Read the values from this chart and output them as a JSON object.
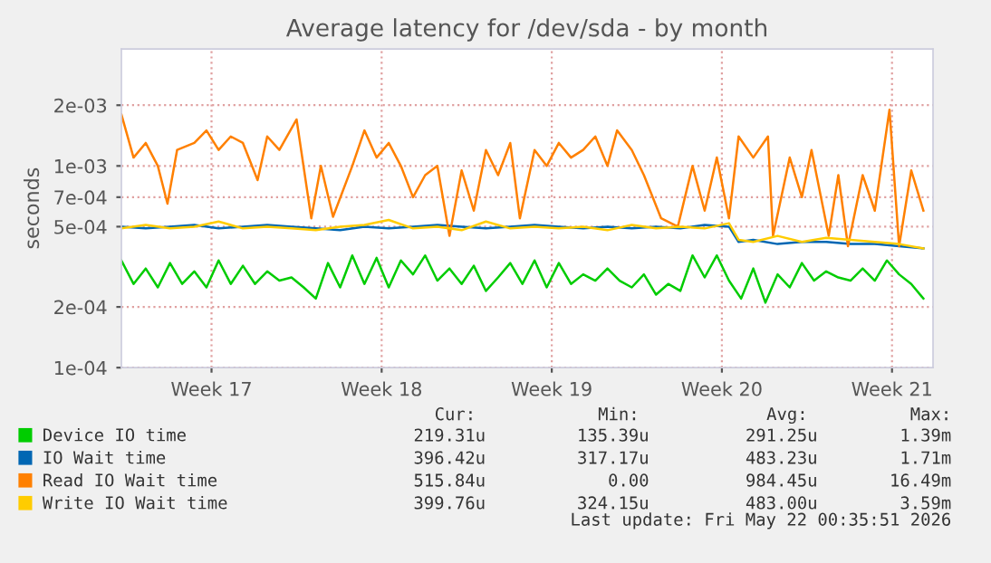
{
  "chart_data": {
    "type": "line",
    "title": "Average latency for /dev/sda - by month",
    "ylabel": "seconds",
    "log": "y",
    "grid": true,
    "legend": "bottom",
    "marker": "none",
    "line_style": "solid",
    "xlim": [
      "2026-04-19T19:00",
      "2026-05-23T04:30"
    ],
    "xticks": [
      {
        "value": "2026-04-23T12:00",
        "label": "Week 17"
      },
      {
        "value": "2026-04-30T12:00",
        "label": "Week 18"
      },
      {
        "value": "2026-05-07T12:00",
        "label": "Week 19"
      },
      {
        "value": "2026-05-14T12:00",
        "label": "Week 20"
      },
      {
        "value": "2026-05-21T12:00",
        "label": "Week 21"
      }
    ],
    "ylim": [
      0.0001,
      0.0038
    ],
    "yticks": [
      {
        "value": 0.0001,
        "label": "1e-04"
      },
      {
        "value": 0.0002,
        "label": "2e-04"
      },
      {
        "value": 0.0005,
        "label": "5e-04"
      },
      {
        "value": 0.0007,
        "label": "7e-04"
      },
      {
        "value": 0.001,
        "label": "1e-03"
      },
      {
        "value": 0.002,
        "label": "2e-03"
      }
    ],
    "series": [
      {
        "name": "Device IO time",
        "color": "#00cc00",
        "x": [
          "2026-04-19T19:00",
          "2026-04-20T07:00",
          "2026-04-20T19:00",
          "2026-04-21T07:00",
          "2026-04-21T19:00",
          "2026-04-22T07:00",
          "2026-04-22T19:00",
          "2026-04-23T07:00",
          "2026-04-23T19:00",
          "2026-04-24T07:00",
          "2026-04-24T19:00",
          "2026-04-25T07:00",
          "2026-04-25T19:00",
          "2026-04-26T07:00",
          "2026-04-26T19:00",
          "2026-04-27T07:00",
          "2026-04-27T19:00",
          "2026-04-28T07:00",
          "2026-04-28T19:00",
          "2026-04-29T07:00",
          "2026-04-29T19:00",
          "2026-04-30T07:00",
          "2026-04-30T19:00",
          "2026-05-01T07:00",
          "2026-05-01T19:00",
          "2026-05-02T07:00",
          "2026-05-02T19:00",
          "2026-05-03T07:00",
          "2026-05-03T19:00",
          "2026-05-04T07:00",
          "2026-05-04T19:00",
          "2026-05-05T07:00",
          "2026-05-05T19:00",
          "2026-05-06T07:00",
          "2026-05-06T19:00",
          "2026-05-07T07:00",
          "2026-05-07T19:00",
          "2026-05-08T07:00",
          "2026-05-08T19:00",
          "2026-05-09T07:00",
          "2026-05-09T19:00",
          "2026-05-10T07:00",
          "2026-05-10T19:00",
          "2026-05-11T07:00",
          "2026-05-11T19:00",
          "2026-05-12T07:00",
          "2026-05-12T19:00",
          "2026-05-13T07:00",
          "2026-05-13T19:00",
          "2026-05-14T07:00",
          "2026-05-14T19:00",
          "2026-05-15T07:00",
          "2026-05-15T19:00",
          "2026-05-16T07:00",
          "2026-05-16T19:00",
          "2026-05-17T07:00",
          "2026-05-17T19:00",
          "2026-05-18T07:00",
          "2026-05-18T19:00",
          "2026-05-19T07:00",
          "2026-05-19T19:00",
          "2026-05-20T07:00",
          "2026-05-20T19:00",
          "2026-05-21T07:00",
          "2026-05-21T19:00",
          "2026-05-22T07:00",
          "2026-05-22T19:00"
        ],
        "values": [
          0.00034,
          0.00026,
          0.00031,
          0.00025,
          0.00033,
          0.00026,
          0.0003,
          0.00025,
          0.00034,
          0.00026,
          0.00032,
          0.00026,
          0.0003,
          0.00027,
          0.00028,
          0.00025,
          0.00022,
          0.00033,
          0.00025,
          0.00036,
          0.00026,
          0.00035,
          0.00025,
          0.00034,
          0.00029,
          0.00036,
          0.00027,
          0.00031,
          0.00026,
          0.00032,
          0.00024,
          0.00028,
          0.00033,
          0.00026,
          0.00034,
          0.00025,
          0.00033,
          0.00026,
          0.00029,
          0.00027,
          0.00031,
          0.00027,
          0.00025,
          0.00029,
          0.00023,
          0.00026,
          0.00024,
          0.00036,
          0.00028,
          0.00036,
          0.00027,
          0.00022,
          0.00031,
          0.00021,
          0.00029,
          0.00025,
          0.00033,
          0.00027,
          0.0003,
          0.00028,
          0.00027,
          0.00031,
          0.00027,
          0.00034,
          0.00029,
          0.00026,
          0.00022
        ]
      },
      {
        "name": "IO Wait time",
        "color": "#0066b3",
        "x": [
          "2026-04-19T19:00",
          "2026-04-20T19:00",
          "2026-04-21T19:00",
          "2026-04-22T19:00",
          "2026-04-23T19:00",
          "2026-04-24T19:00",
          "2026-04-25T19:00",
          "2026-04-26T19:00",
          "2026-04-27T19:00",
          "2026-04-28T19:00",
          "2026-04-29T19:00",
          "2026-04-30T19:00",
          "2026-05-01T19:00",
          "2026-05-02T19:00",
          "2026-05-03T19:00",
          "2026-05-04T19:00",
          "2026-05-05T19:00",
          "2026-05-06T19:00",
          "2026-05-07T19:00",
          "2026-05-08T19:00",
          "2026-05-09T19:00",
          "2026-05-10T19:00",
          "2026-05-11T19:00",
          "2026-05-12T19:00",
          "2026-05-13T19:00",
          "2026-05-14T19:00",
          "2026-05-15T04:30",
          "2026-05-15T19:00",
          "2026-05-16T19:00",
          "2026-05-17T19:00",
          "2026-05-18T19:00",
          "2026-05-19T19:00",
          "2026-05-20T19:00",
          "2026-05-21T19:00",
          "2026-05-22T19:00"
        ],
        "values": [
          0.0005,
          0.00049,
          0.0005,
          0.00051,
          0.00049,
          0.0005,
          0.00051,
          0.0005,
          0.00049,
          0.00048,
          0.0005,
          0.00049,
          0.0005,
          0.00051,
          0.0005,
          0.00049,
          0.0005,
          0.00051,
          0.0005,
          0.00049,
          0.0005,
          0.00049,
          0.0005,
          0.00049,
          0.00051,
          0.0005,
          0.00042,
          0.00043,
          0.00041,
          0.00042,
          0.00042,
          0.00041,
          0.00041,
          0.0004,
          0.00039
        ]
      },
      {
        "name": "Read IO Wait time",
        "color": "#ff8000",
        "x": [
          "2026-04-19T19:00",
          "2026-04-20T07:00",
          "2026-04-20T19:00",
          "2026-04-21T07:00",
          "2026-04-21T16:30",
          "2026-04-22T02:00",
          "2026-04-22T19:00",
          "2026-04-23T07:00",
          "2026-04-23T19:00",
          "2026-04-24T07:00",
          "2026-04-24T19:00",
          "2026-04-25T09:30",
          "2026-04-25T19:00",
          "2026-04-26T07:00",
          "2026-04-27T00:00",
          "2026-04-27T14:30",
          "2026-04-28T00:00",
          "2026-04-28T12:00",
          "2026-04-29T07:00",
          "2026-04-29T19:00",
          "2026-04-30T07:00",
          "2026-04-30T19:00",
          "2026-05-01T07:00",
          "2026-05-01T19:00",
          "2026-05-02T07:00",
          "2026-05-02T19:00",
          "2026-05-03T07:00",
          "2026-05-03T19:00",
          "2026-05-04T07:00",
          "2026-05-04T19:00",
          "2026-05-05T07:00",
          "2026-05-05T19:00",
          "2026-05-06T04:30",
          "2026-05-06T19:00",
          "2026-05-07T07:00",
          "2026-05-07T19:00",
          "2026-05-08T07:00",
          "2026-05-08T19:00",
          "2026-05-09T07:00",
          "2026-05-09T19:00",
          "2026-05-10T04:30",
          "2026-05-10T19:00",
          "2026-05-11T07:00",
          "2026-05-12T00:00",
          "2026-05-12T16:30",
          "2026-05-13T07:00",
          "2026-05-13T19:00",
          "2026-05-14T07:00",
          "2026-05-14T19:00",
          "2026-05-15T04:30",
          "2026-05-15T19:00",
          "2026-05-16T09:30",
          "2026-05-16T14:30",
          "2026-05-17T07:00",
          "2026-05-17T19:00",
          "2026-05-18T04:30",
          "2026-05-18T21:30",
          "2026-05-19T07:00",
          "2026-05-19T16:30",
          "2026-05-20T07:00",
          "2026-05-20T19:00",
          "2026-05-21T09:30",
          "2026-05-21T19:00",
          "2026-05-22T07:00",
          "2026-05-22T19:00"
        ],
        "values": [
          0.0018,
          0.0011,
          0.0013,
          0.001,
          0.00065,
          0.0012,
          0.0013,
          0.0015,
          0.0012,
          0.0014,
          0.0013,
          0.00085,
          0.0014,
          0.0012,
          0.0017,
          0.00055,
          0.001,
          0.00056,
          0.001,
          0.0015,
          0.0011,
          0.0013,
          0.001,
          0.0007,
          0.0009,
          0.001,
          0.00045,
          0.00095,
          0.0006,
          0.0012,
          0.0009,
          0.0013,
          0.00055,
          0.0012,
          0.001,
          0.0013,
          0.0011,
          0.0012,
          0.0014,
          0.001,
          0.0015,
          0.0012,
          0.0009,
          0.00055,
          0.0005,
          0.001,
          0.0006,
          0.0011,
          0.00055,
          0.0014,
          0.0011,
          0.0014,
          0.00045,
          0.0011,
          0.0007,
          0.0012,
          0.00045,
          0.0009,
          0.0004,
          0.0009,
          0.0006,
          0.0019,
          0.0004,
          0.00095,
          0.0006
        ]
      },
      {
        "name": "Write IO Wait time",
        "color": "#ffcc00",
        "x": [
          "2026-04-19T19:00",
          "2026-04-20T19:00",
          "2026-04-21T19:00",
          "2026-04-22T19:00",
          "2026-04-23T19:00",
          "2026-04-24T19:00",
          "2026-04-25T19:00",
          "2026-04-26T19:00",
          "2026-04-27T19:00",
          "2026-04-28T19:00",
          "2026-04-29T19:00",
          "2026-04-30T19:00",
          "2026-05-01T19:00",
          "2026-05-02T19:00",
          "2026-05-03T19:00",
          "2026-05-04T19:00",
          "2026-05-05T19:00",
          "2026-05-06T19:00",
          "2026-05-07T19:00",
          "2026-05-08T19:00",
          "2026-05-09T19:00",
          "2026-05-10T19:00",
          "2026-05-11T19:00",
          "2026-05-12T19:00",
          "2026-05-13T19:00",
          "2026-05-14T19:00",
          "2026-05-15T04:30",
          "2026-05-15T19:00",
          "2026-05-16T19:00",
          "2026-05-17T19:00",
          "2026-05-18T19:00",
          "2026-05-19T19:00",
          "2026-05-20T19:00",
          "2026-05-21T19:00",
          "2026-05-22T19:00"
        ],
        "values": [
          0.00049,
          0.00051,
          0.00049,
          0.0005,
          0.00053,
          0.00049,
          0.0005,
          0.00049,
          0.00048,
          0.0005,
          0.00051,
          0.00054,
          0.00049,
          0.0005,
          0.00048,
          0.00053,
          0.00049,
          0.0005,
          0.00049,
          0.0005,
          0.00048,
          0.00051,
          0.00049,
          0.0005,
          0.00049,
          0.00052,
          0.00043,
          0.00042,
          0.00045,
          0.00042,
          0.00044,
          0.00043,
          0.00042,
          0.00041,
          0.00039
        ]
      }
    ],
    "annotations": [
      "Cur:",
      "Min:",
      "Avg:",
      "Max:",
      "219.31u",
      "135.39u",
      "291.25u",
      "1.39m",
      "396.42u",
      "317.17u",
      "483.23u",
      "1.71m",
      "515.84u",
      "0.00",
      "984.45u",
      "16.49m",
      "399.76u",
      "324.15u",
      "483.00u",
      "3.59m",
      "Last update: Fri May 22 00:35:51 2026"
    ]
  }
}
